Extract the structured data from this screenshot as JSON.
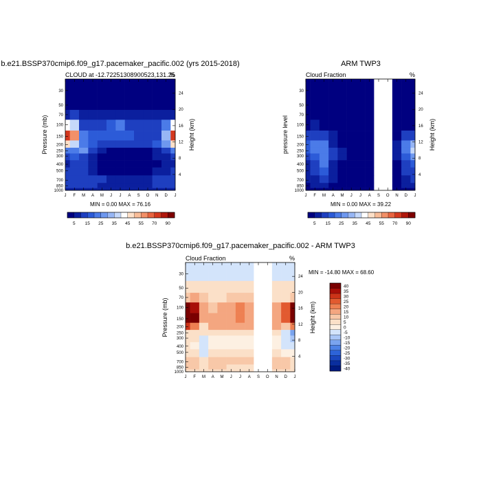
{
  "colors": {
    "seq": [
      "#000080",
      "#0b1f9e",
      "#1e3fc0",
      "#2c5bd8",
      "#4b7be8",
      "#6e98ef",
      "#97b6f5",
      "#c5d8fa",
      "#ffffff",
      "#fde0c8",
      "#f8bc98",
      "#f29068",
      "#e86440",
      "#d4381e",
      "#b0170c",
      "#7f0000"
    ],
    "div": [
      "#001a80",
      "#0a2e9e",
      "#1a47bf",
      "#2d63d8",
      "#4d82e6",
      "#7aa4ef",
      "#a9c6f7",
      "#d3e4fb",
      "#fdf0e2",
      "#fbe0c8",
      "#f8c8a8",
      "#f4a680",
      "#ee8052",
      "#e25a30",
      "#cc3318",
      "#a80f08",
      "#7a0000"
    ]
  },
  "months": [
    "J",
    "F",
    "M",
    "A",
    "M",
    "J",
    "J",
    "A",
    "S",
    "O",
    "N",
    "D",
    "J"
  ],
  "pressure_ticks": [
    "30",
    "50",
    "70",
    "100",
    "150",
    "200",
    "250",
    "300",
    "400",
    "500",
    "700",
    "850",
    "1000"
  ],
  "height_ticks_top": [
    "24",
    "20",
    "16",
    "12",
    "8",
    "4"
  ],
  "height_ticks_bottom": [
    "24",
    "20",
    "16",
    "12",
    "8",
    "4"
  ],
  "panel1": {
    "main_title": "b.e21.BSSP370cmip6.f09_g17.pacemaker_pacific.002 (yrs 2015-2018)",
    "left_label": "CLOUD at -12.72251308900523,131.25",
    "right_label": "%",
    "ylabel": "Pressure (mb)",
    "y2label": "Height (km)",
    "minmax": "MIN =   0.00 MAX =  76.16"
  },
  "panel2": {
    "main_title": "ARM TWP3",
    "left_label": "Cloud Fraction",
    "right_label": "%",
    "ylabel": "pressure level",
    "y2label": "Height (km)",
    "minmax": "MIN =   0.00 MAX =  39.22"
  },
  "panel3": {
    "main_title": "b.e21.BSSP370cmip6.f09_g17.pacemaker_pacific.002 - ARM TWP3",
    "left_label": "Cloud Fraction",
    "right_label": "%",
    "ylabel": "Pressure (mb)",
    "y2label": "Height (km)",
    "minmax": "MIN = -14.80 MAX =  68.60"
  },
  "colorbar_top": {
    "labels": [
      "5",
      "15",
      "25",
      "35",
      "45",
      "55",
      "70",
      "90"
    ]
  },
  "colorbar_diff": {
    "labels": [
      "40",
      "35",
      "30",
      "25",
      "20",
      "15",
      "10",
      "5",
      "0",
      "-5",
      "-10",
      "-15",
      "-20",
      "-25",
      "-30",
      "-35",
      "-40"
    ]
  },
  "chart_data": [
    {
      "type": "heatmap",
      "title": "b.e21.BSSP370cmip6.f09_g17.pacemaker_pacific.002 (yrs 2015-2018)",
      "subtitle": "CLOUD at -12.72251308900523,131.25",
      "xlabel": "",
      "ylabel": "Pressure (mb)",
      "y2label": "Height (km)",
      "x": [
        "J",
        "F",
        "M",
        "A",
        "M",
        "J",
        "J",
        "A",
        "S",
        "O",
        "N",
        "D",
        "J"
      ],
      "y": [
        30,
        50,
        70,
        100,
        150,
        200,
        250,
        300,
        400,
        500,
        700,
        850,
        1000
      ],
      "levels": [
        5,
        10,
        15,
        20,
        25,
        30,
        35,
        40,
        45,
        50,
        55,
        60,
        70,
        80,
        90
      ],
      "values": [
        [
          2,
          2,
          2,
          2,
          2,
          2,
          2,
          2,
          2,
          2,
          2,
          2,
          2
        ],
        [
          3,
          3,
          3,
          3,
          3,
          3,
          3,
          3,
          3,
          3,
          3,
          3,
          3
        ],
        [
          8,
          12,
          8,
          6,
          6,
          8,
          8,
          8,
          6,
          6,
          6,
          6,
          8
        ],
        [
          40,
          35,
          14,
          10,
          12,
          16,
          20,
          14,
          12,
          12,
          12,
          22,
          40
        ],
        [
          72,
          55,
          20,
          15,
          16,
          15,
          18,
          16,
          14,
          14,
          14,
          30,
          72
        ],
        [
          45,
          38,
          22,
          18,
          14,
          12,
          12,
          12,
          10,
          10,
          16,
          28,
          45
        ],
        [
          20,
          22,
          25,
          12,
          6,
          4,
          4,
          4,
          4,
          4,
          8,
          14,
          20
        ],
        [
          12,
          16,
          14,
          8,
          3,
          2,
          2,
          2,
          2,
          2,
          5,
          8,
          12
        ],
        [
          8,
          10,
          10,
          6,
          3,
          2,
          2,
          2,
          2,
          2,
          4,
          6,
          8
        ],
        [
          10,
          12,
          10,
          8,
          4,
          3,
          3,
          3,
          3,
          3,
          6,
          8,
          10
        ],
        [
          14,
          14,
          12,
          12,
          10,
          8,
          8,
          8,
          8,
          9,
          12,
          14,
          14
        ],
        [
          10,
          12,
          10,
          10,
          8,
          6,
          6,
          6,
          6,
          8,
          10,
          12,
          10
        ],
        [
          6,
          6,
          6,
          6,
          6,
          6,
          6,
          6,
          6,
          6,
          6,
          6,
          6
        ]
      ],
      "min": 0.0,
      "max": 76.16
    },
    {
      "type": "heatmap",
      "title": "ARM TWP3",
      "subtitle": "Cloud Fraction",
      "xlabel": "",
      "ylabel": "pressure level",
      "y2label": "Height (km)",
      "x": [
        "J",
        "F",
        "M",
        "A",
        "M",
        "J",
        "J",
        "A",
        "S",
        "O",
        "N",
        "D",
        "J"
      ],
      "y": [
        30,
        50,
        70,
        100,
        150,
        200,
        250,
        300,
        400,
        500,
        700,
        850,
        1000
      ],
      "levels": [
        5,
        10,
        15,
        20,
        25,
        30,
        35,
        40,
        45,
        50,
        55,
        60,
        70,
        80,
        90
      ],
      "missing_x": [
        "S",
        "O"
      ],
      "values": [
        [
          1,
          1,
          1,
          1,
          1,
          1,
          1,
          1,
          null,
          null,
          1,
          1,
          1
        ],
        [
          1,
          1,
          1,
          1,
          1,
          1,
          1,
          1,
          null,
          null,
          1,
          1,
          1
        ],
        [
          2,
          2,
          2,
          2,
          2,
          2,
          2,
          2,
          null,
          null,
          2,
          2,
          2
        ],
        [
          4,
          6,
          4,
          3,
          3,
          3,
          3,
          3,
          null,
          null,
          3,
          4,
          4
        ],
        [
          10,
          14,
          12,
          6,
          4,
          3,
          3,
          3,
          null,
          null,
          4,
          10,
          12
        ],
        [
          18,
          22,
          20,
          8,
          4,
          3,
          3,
          3,
          null,
          null,
          6,
          22,
          30
        ],
        [
          16,
          20,
          24,
          10,
          5,
          3,
          3,
          3,
          null,
          null,
          6,
          22,
          38
        ],
        [
          12,
          16,
          24,
          10,
          5,
          3,
          3,
          3,
          null,
          null,
          5,
          16,
          28
        ],
        [
          8,
          12,
          20,
          8,
          4,
          3,
          3,
          3,
          null,
          null,
          4,
          12,
          18
        ],
        [
          6,
          10,
          16,
          8,
          4,
          3,
          3,
          3,
          null,
          null,
          4,
          10,
          12
        ],
        [
          6,
          8,
          12,
          6,
          3,
          2,
          2,
          2,
          null,
          null,
          3,
          8,
          10
        ],
        [
          4,
          6,
          8,
          4,
          2,
          2,
          2,
          2,
          null,
          null,
          2,
          6,
          6
        ],
        [
          2,
          2,
          2,
          2,
          2,
          2,
          2,
          2,
          null,
          null,
          2,
          2,
          2
        ]
      ],
      "min": 0.0,
      "max": 39.22
    },
    {
      "type": "heatmap",
      "title": "b.e21.BSSP370cmip6.f09_g17.pacemaker_pacific.002 - ARM TWP3",
      "subtitle": "Cloud Fraction",
      "xlabel": "",
      "ylabel": "Pressure (mb)",
      "y2label": "Height (km)",
      "x": [
        "J",
        "F",
        "M",
        "A",
        "M",
        "J",
        "J",
        "A",
        "S",
        "O",
        "N",
        "D",
        "J"
      ],
      "y": [
        30,
        50,
        70,
        100,
        150,
        200,
        250,
        300,
        400,
        500,
        700,
        850,
        1000
      ],
      "levels": [
        -40,
        -35,
        -30,
        -25,
        -20,
        -15,
        -10,
        -5,
        0,
        5,
        10,
        15,
        20,
        25,
        30,
        35,
        40
      ],
      "missing_x": [
        "S",
        "O"
      ],
      "values": [
        [
          -6,
          -6,
          -6,
          -6,
          -6,
          -6,
          -6,
          -6,
          null,
          null,
          -6,
          -6,
          -6
        ],
        [
          2,
          2,
          2,
          2,
          2,
          2,
          2,
          2,
          null,
          null,
          2,
          2,
          2
        ],
        [
          6,
          10,
          6,
          4,
          4,
          6,
          6,
          6,
          null,
          null,
          4,
          4,
          6
        ],
        [
          36,
          30,
          12,
          8,
          10,
          14,
          18,
          12,
          null,
          null,
          10,
          20,
          36
        ],
        [
          62,
          42,
          10,
          10,
          12,
          12,
          16,
          14,
          null,
          null,
          10,
          22,
          62
        ],
        [
          28,
          18,
          4,
          10,
          10,
          10,
          10,
          10,
          null,
          null,
          10,
          8,
          15
        ],
        [
          4,
          2,
          2,
          2,
          2,
          2,
          2,
          2,
          null,
          null,
          2,
          -6,
          -18
        ],
        [
          2,
          2,
          -6,
          -4,
          -2,
          -2,
          -2,
          -2,
          null,
          null,
          -2,
          -8,
          -14
        ],
        [
          2,
          -2,
          -10,
          -4,
          -2,
          -2,
          -2,
          -2,
          null,
          null,
          -2,
          -6,
          -10
        ],
        [
          4,
          2,
          -6,
          0,
          0,
          0,
          0,
          0,
          null,
          null,
          2,
          -2,
          -2
        ],
        [
          8,
          6,
          2,
          6,
          6,
          6,
          6,
          6,
          null,
          null,
          8,
          6,
          4
        ],
        [
          6,
          6,
          2,
          6,
          6,
          4,
          4,
          4,
          null,
          null,
          8,
          6,
          4
        ],
        [
          4,
          4,
          4,
          4,
          4,
          4,
          4,
          4,
          null,
          null,
          4,
          4,
          4
        ]
      ],
      "min": -14.8,
      "max": 68.6
    }
  ]
}
